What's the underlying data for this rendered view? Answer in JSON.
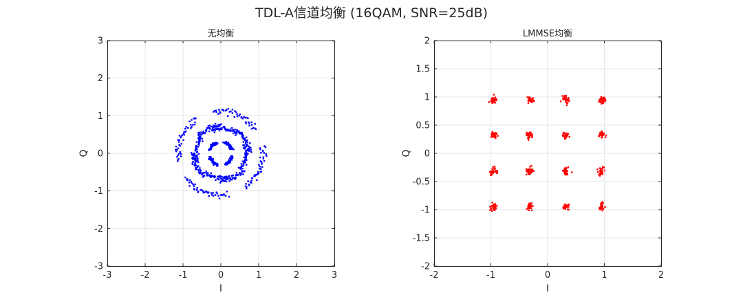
{
  "figure": {
    "suptitle": "TDL-A信道均衡 (16QAM, SNR=25dB)"
  },
  "chart_data": [
    {
      "type": "scatter",
      "title": "无均衡",
      "xlabel": "I",
      "ylabel": "Q",
      "xlim": [
        -3,
        3
      ],
      "ylim": [
        -3,
        3
      ],
      "xticks": [
        -3,
        -2,
        -1,
        0,
        1,
        2,
        3
      ],
      "yticks": [
        -3,
        -2,
        -1,
        0,
        1,
        2,
        3
      ],
      "xtick_labels": [
        "-3",
        "-2",
        "-1",
        "0",
        "1",
        "2",
        "3"
      ],
      "ytick_labels": [
        "-3",
        "-2",
        "-1",
        "0",
        "1",
        "2",
        "3"
      ],
      "grid": true,
      "point_color": "#0000ff",
      "series": [
        {
          "description": "rotated 16QAM constellation, symbols smeared into spiral arcs",
          "arcs": [
            {
              "r": 0.31,
              "a0": 20,
              "a1": 75
            },
            {
              "r": 0.31,
              "a0": 110,
              "a1": 165
            },
            {
              "r": 0.31,
              "a0": 200,
              "a1": 255
            },
            {
              "r": 0.31,
              "a0": 290,
              "a1": 345
            },
            {
              "r": 0.66,
              "a0": 50,
              "a1": 110
            },
            {
              "r": 0.66,
              "a0": 140,
              "a1": 200
            },
            {
              "r": 0.66,
              "a0": 230,
              "a1": 290
            },
            {
              "r": 0.66,
              "a0": 320,
              "a1": 380
            },
            {
              "r": 0.74,
              "a0": 0,
              "a1": 55
            },
            {
              "r": 0.74,
              "a0": 90,
              "a1": 145
            },
            {
              "r": 0.74,
              "a0": 180,
              "a1": 235
            },
            {
              "r": 0.74,
              "a0": 270,
              "a1": 325
            },
            {
              "r": 1.12,
              "a0": 35,
              "a1": 100
            },
            {
              "r": 1.12,
              "a0": 125,
              "a1": 190
            },
            {
              "r": 1.12,
              "a0": 215,
              "a1": 280
            },
            {
              "r": 1.12,
              "a0": 305,
              "a1": 370
            }
          ],
          "points_per_arc": 45
        }
      ]
    },
    {
      "type": "scatter",
      "title": "LMMSE均衡",
      "xlabel": "I",
      "ylabel": "Q",
      "xlim": [
        -2,
        2
      ],
      "ylim": [
        -2,
        2
      ],
      "xticks": [
        -2,
        -1,
        0,
        1,
        2
      ],
      "yticks": [
        -2,
        -1.5,
        -1,
        -0.5,
        0,
        0.5,
        1,
        1.5,
        2
      ],
      "xtick_labels": [
        "-2",
        "-1",
        "0",
        "1",
        "2"
      ],
      "ytick_labels": [
        "-2",
        "-1.5",
        "-1",
        "-0.5",
        "0",
        "0.5",
        "1",
        "1.5",
        "2"
      ],
      "grid": true,
      "point_color": "#ff0000",
      "series": [
        {
          "description": "equalized 16QAM clusters",
          "centers": [
            [
              -0.95,
              0.95
            ],
            [
              -0.32,
              0.95
            ],
            [
              0.32,
              0.95
            ],
            [
              0.95,
              0.95
            ],
            [
              -0.95,
              0.32
            ],
            [
              -0.32,
              0.32
            ],
            [
              0.32,
              0.32
            ],
            [
              0.95,
              0.32
            ],
            [
              -0.95,
              -0.32
            ],
            [
              -0.32,
              -0.32
            ],
            [
              0.32,
              -0.32
            ],
            [
              0.95,
              -0.32
            ],
            [
              -0.95,
              -0.95
            ],
            [
              -0.32,
              -0.95
            ],
            [
              0.32,
              -0.95
            ],
            [
              0.95,
              -0.95
            ]
          ],
          "points_per_cluster": 30,
          "spread": 0.03
        }
      ]
    }
  ]
}
